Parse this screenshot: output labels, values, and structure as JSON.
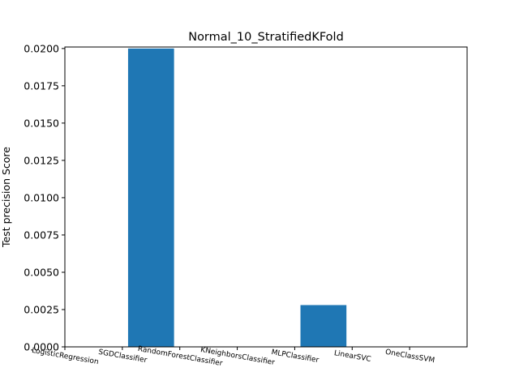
{
  "chart_data": {
    "type": "bar",
    "title": "Normal_10_StratifiedKFold",
    "xlabel": "",
    "ylabel": "Test precision Score",
    "categories": [
      "LogisticRegression",
      "SGDClassifier",
      "RandomForestClassifier",
      "KNeighborsClassifier",
      "MLPClassifier",
      "LinearSVC",
      "OneClassSVM"
    ],
    "values": [
      0.0,
      0.02,
      0.0,
      0.0,
      0.0028,
      0.0,
      0.0
    ],
    "ylim": [
      0,
      0.0201
    ],
    "yticks": [
      "0.0000",
      "0.0025",
      "0.0050",
      "0.0075",
      "0.0100",
      "0.0125",
      "0.0150",
      "0.0175",
      "0.0200"
    ],
    "grid": false,
    "bar_color": "#1f77b4"
  }
}
